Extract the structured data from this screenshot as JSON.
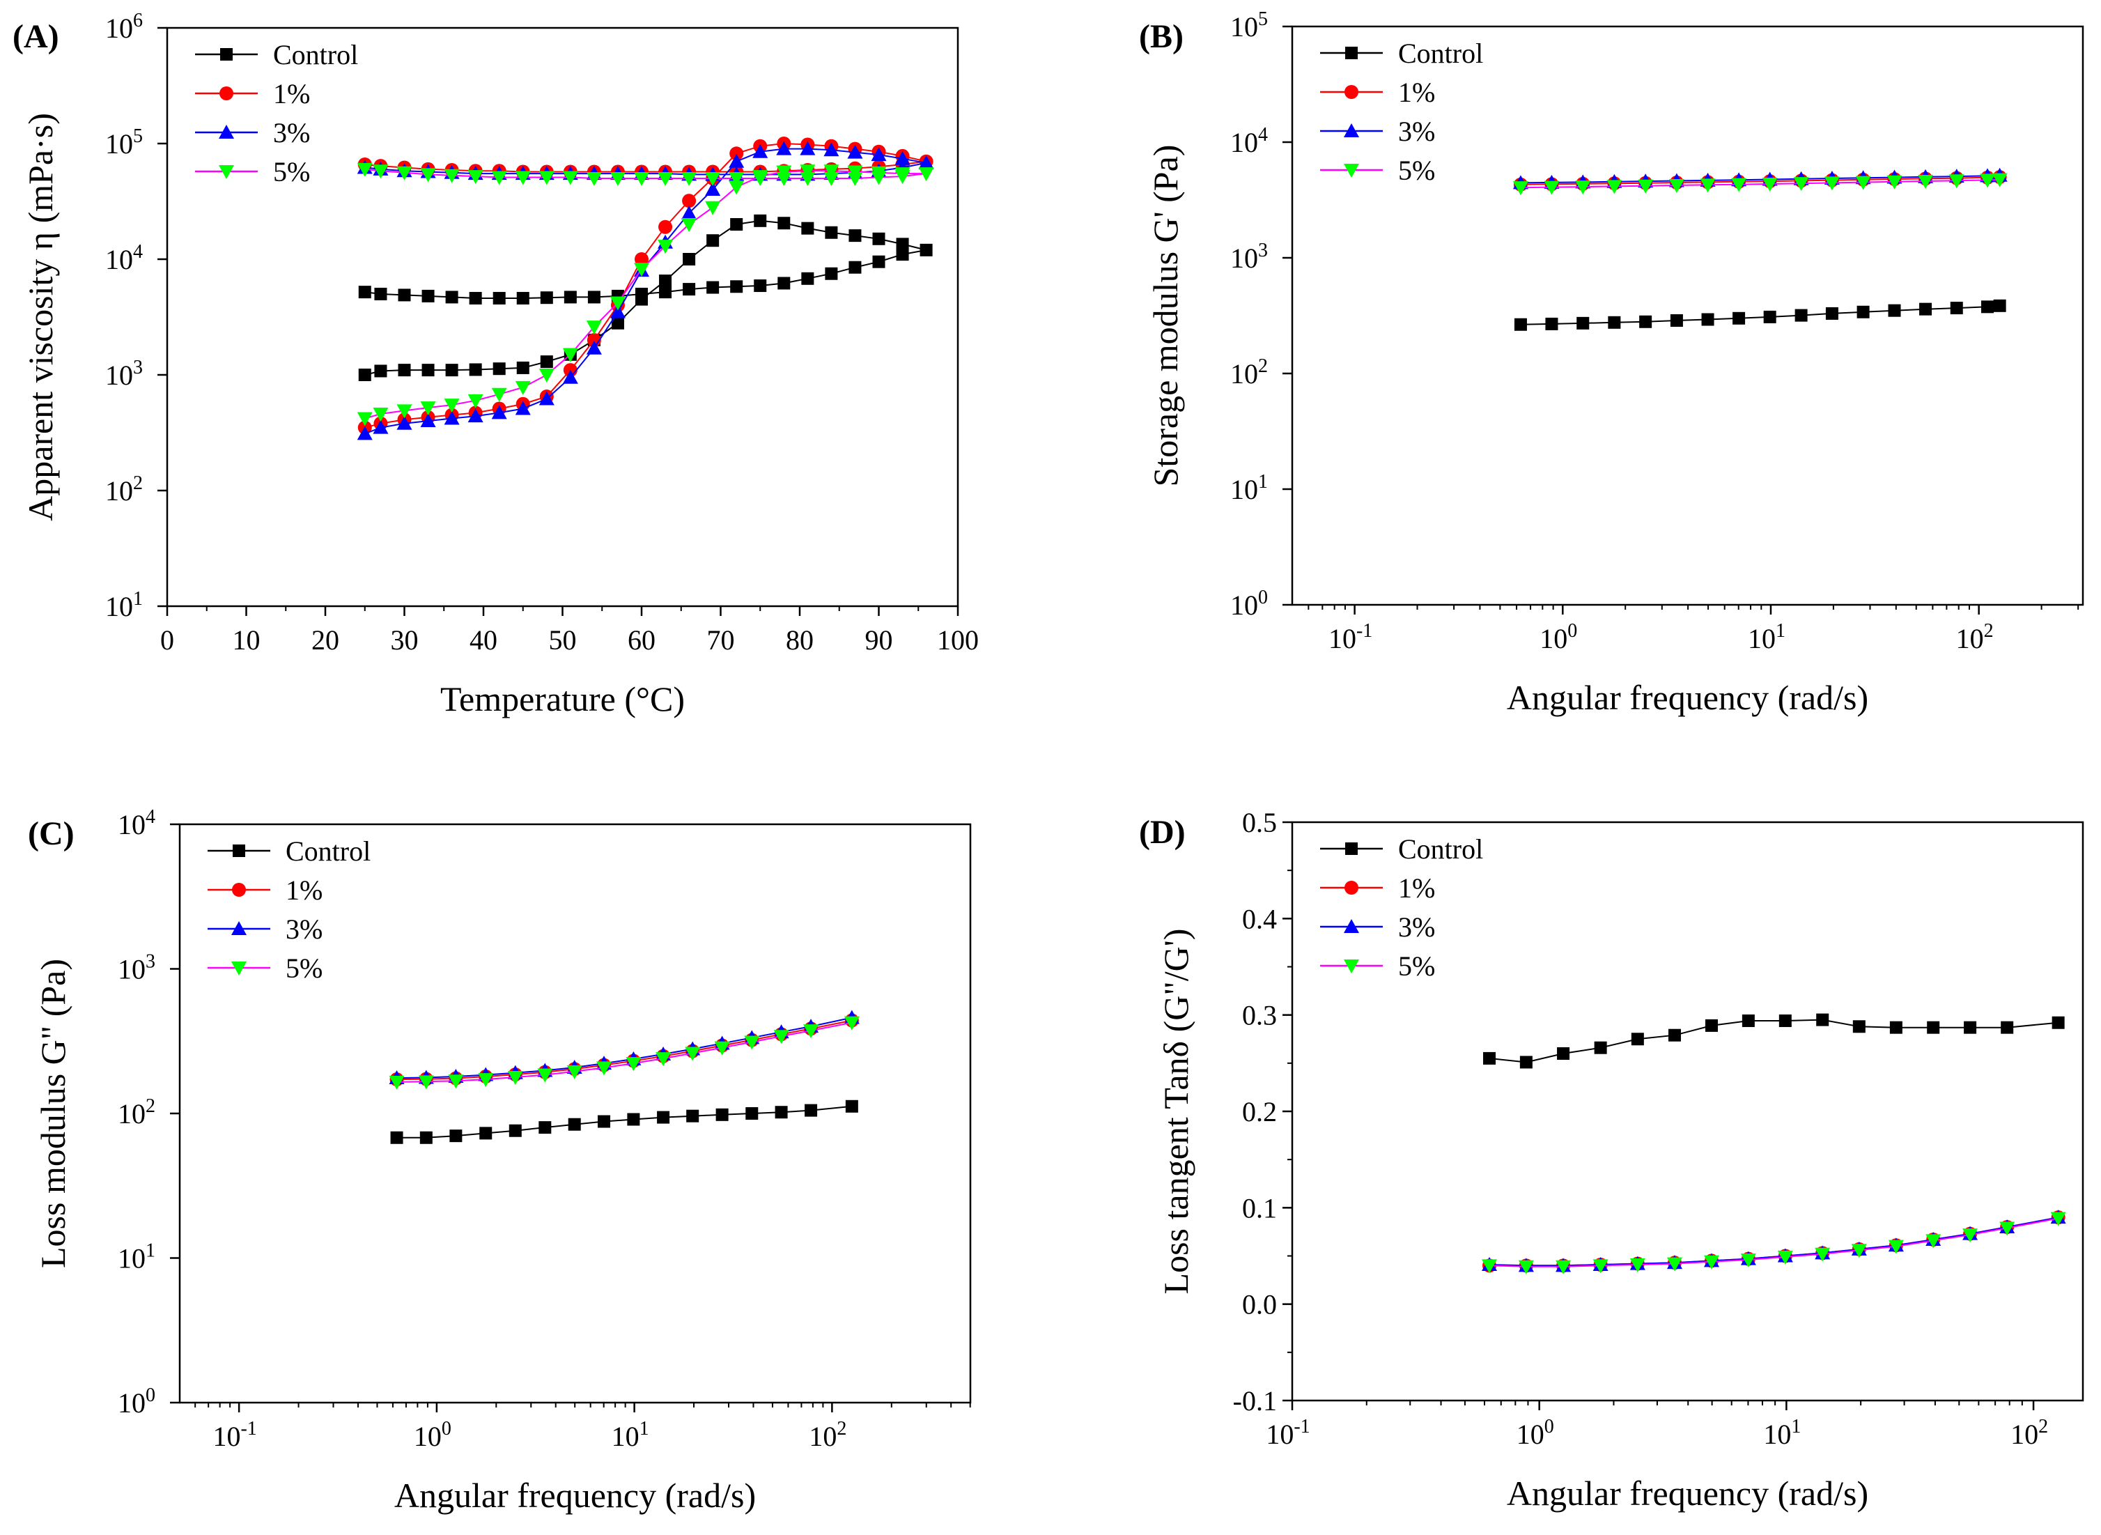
{
  "figure": {
    "background": "#ffffff"
  },
  "series_styles": [
    {
      "name": "Control",
      "color": "#000000",
      "marker": "square"
    },
    {
      "name": "1%",
      "color": "#ff0000",
      "marker": "circle"
    },
    {
      "name": "3%",
      "color": "#0000ff",
      "marker": "triangle-up"
    },
    {
      "name": "5%",
      "color": "#00ff00",
      "line_color": "#ff00ff",
      "marker": "triangle-down"
    }
  ],
  "chart_data": [
    {
      "id": "A",
      "panel_label": "(A)",
      "type": "line",
      "xscale": "linear",
      "yscale": "log",
      "xlim": [
        0,
        100
      ],
      "ylim_exp": [
        1,
        6
      ],
      "xticks": [
        0,
        10,
        20,
        30,
        40,
        50,
        60,
        70,
        80,
        90,
        100
      ],
      "yticks_exp": [
        1,
        2,
        3,
        4,
        5,
        6
      ],
      "xlabel": "Temperature (°C)",
      "ylabel": "Apparent viscosity η (mPa·s)",
      "legend": [
        "Control",
        "1%",
        "3%",
        "5%"
      ],
      "legend_position": "top-left",
      "series": [
        {
          "name": "Control",
          "x": [
            25,
            27,
            30,
            33,
            36,
            39,
            42,
            45,
            48,
            51,
            54,
            57,
            60,
            63,
            66,
            69,
            72,
            75,
            78,
            81,
            84,
            87,
            90,
            93,
            96,
            93,
            90,
            87,
            84,
            81,
            78,
            75,
            72,
            69,
            66,
            63,
            60,
            57,
            54,
            51,
            48,
            45,
            42,
            39,
            36,
            33,
            30,
            27,
            25
          ],
          "y": [
            1000,
            1080,
            1100,
            1100,
            1100,
            1110,
            1130,
            1150,
            1300,
            1500,
            2000,
            2800,
            4500,
            6500,
            10000,
            14500,
            20000,
            21500,
            20500,
            18500,
            17000,
            16000,
            15000,
            13500,
            12000,
            11000,
            9500,
            8500,
            7500,
            6800,
            6200,
            5900,
            5800,
            5700,
            5500,
            5200,
            5000,
            4800,
            4700,
            4700,
            4650,
            4600,
            4600,
            4600,
            4700,
            4800,
            4900,
            5000,
            5200
          ]
        },
        {
          "name": "1%",
          "x": [
            25,
            27,
            30,
            33,
            36,
            39,
            42,
            45,
            48,
            51,
            54,
            57,
            60,
            63,
            66,
            69,
            72,
            75,
            78,
            81,
            84,
            87,
            90,
            93,
            96,
            93,
            90,
            87,
            84,
            81,
            78,
            75,
            72,
            69,
            66,
            63,
            60,
            57,
            54,
            51,
            48,
            45,
            42,
            39,
            36,
            33,
            30,
            27,
            25
          ],
          "y": [
            350,
            380,
            410,
            430,
            450,
            470,
            510,
            560,
            650,
            1100,
            2000,
            4000,
            10000,
            19000,
            32000,
            50000,
            82000,
            95000,
            100000,
            98000,
            95000,
            90000,
            85000,
            78000,
            70000,
            66000,
            63000,
            61000,
            60000,
            59000,
            58000,
            57000,
            57000,
            57000,
            57000,
            57000,
            57000,
            57000,
            57000,
            57000,
            57000,
            57000,
            58000,
            58000,
            59000,
            60000,
            62000,
            64000,
            66000
          ]
        },
        {
          "name": "3%",
          "x": [
            25,
            27,
            30,
            33,
            36,
            39,
            42,
            45,
            48,
            51,
            54,
            57,
            60,
            63,
            66,
            69,
            72,
            75,
            78,
            81,
            84,
            87,
            90,
            93,
            96,
            93,
            90,
            87,
            84,
            81,
            78,
            75,
            72,
            69,
            66,
            63,
            60,
            57,
            54,
            51,
            48,
            45,
            42,
            39,
            36,
            33,
            30,
            27,
            25
          ],
          "y": [
            310,
            350,
            380,
            400,
            420,
            440,
            470,
            510,
            620,
            950,
            1700,
            3500,
            8000,
            14000,
            25000,
            40000,
            70000,
            85000,
            90000,
            90000,
            88000,
            84000,
            80000,
            74000,
            68000,
            62000,
            58000,
            56000,
            55000,
            54000,
            54000,
            54000,
            54000,
            54000,
            54000,
            55000,
            55000,
            55000,
            55000,
            55000,
            55000,
            55000,
            55000,
            55000,
            56000,
            57000,
            58000,
            60000,
            62000
          ]
        },
        {
          "name": "5%",
          "x": [
            25,
            27,
            30,
            33,
            36,
            39,
            42,
            45,
            48,
            51,
            54,
            57,
            60,
            63,
            66,
            69,
            72,
            75,
            78,
            81,
            84,
            87,
            90,
            93,
            96,
            93,
            90,
            87,
            84,
            81,
            78,
            75,
            72,
            69,
            66,
            63,
            60,
            57,
            54,
            51,
            48,
            45,
            42,
            39,
            36,
            33,
            30,
            27,
            25
          ],
          "y": [
            420,
            460,
            490,
            520,
            550,
            600,
            680,
            780,
            1000,
            1500,
            2600,
            4200,
            8200,
            13000,
            20000,
            28000,
            42000,
            52000,
            57000,
            58000,
            58000,
            57000,
            56000,
            55000,
            55000,
            52000,
            51000,
            50000,
            50000,
            50000,
            50000,
            50000,
            50000,
            50000,
            50000,
            50000,
            50000,
            50000,
            50000,
            51000,
            51000,
            51000,
            51000,
            52000,
            53000,
            54000,
            56000,
            58000,
            60000
          ]
        }
      ]
    },
    {
      "id": "B",
      "panel_label": "(B)",
      "type": "line",
      "xscale": "log",
      "yscale": "log",
      "xlim_exp": [
        -1.3,
        2.5
      ],
      "ylim_exp": [
        0,
        5
      ],
      "xticks_exp": [
        -1,
        0,
        1,
        2
      ],
      "yticks_exp": [
        0,
        1,
        2,
        3,
        4,
        5
      ],
      "xlabel": "Angular frequency (rad/s)",
      "ylabel": "Storage modulus G' (Pa)",
      "legend": [
        "Control",
        "1%",
        "3%",
        "5%"
      ],
      "legend_position": "top-left",
      "series": [
        {
          "name": "Control",
          "x": [
            0.628,
            0.885,
            1.25,
            1.77,
            2.5,
            3.53,
            4.98,
            7.02,
            9.9,
            14,
            19.7,
            27.8,
            39.3,
            55.4,
            78.2,
            110,
            126
          ],
          "y": [
            265,
            268,
            272,
            276,
            280,
            287,
            293,
            300,
            308,
            318,
            330,
            340,
            350,
            360,
            368,
            377,
            385
          ]
        },
        {
          "name": "1%",
          "x": [
            0.628,
            0.885,
            1.25,
            1.77,
            2.5,
            3.53,
            4.98,
            7.02,
            9.9,
            14,
            19.7,
            27.8,
            39.3,
            55.4,
            78.2,
            110,
            126
          ],
          "y": [
            4300,
            4330,
            4360,
            4400,
            4430,
            4470,
            4510,
            4550,
            4590,
            4640,
            4690,
            4740,
            4790,
            4840,
            4890,
            4940,
            4990
          ]
        },
        {
          "name": "3%",
          "x": [
            0.628,
            0.885,
            1.25,
            1.77,
            2.5,
            3.53,
            4.98,
            7.02,
            9.9,
            14,
            19.7,
            27.8,
            39.3,
            55.4,
            78.2,
            110,
            126
          ],
          "y": [
            4450,
            4480,
            4510,
            4550,
            4590,
            4630,
            4670,
            4710,
            4760,
            4810,
            4860,
            4910,
            4960,
            5010,
            5060,
            5110,
            5160
          ]
        },
        {
          "name": "5%",
          "x": [
            0.628,
            0.885,
            1.25,
            1.77,
            2.5,
            3.53,
            4.98,
            7.02,
            9.9,
            14,
            19.7,
            27.8,
            39.3,
            55.4,
            78.2,
            110,
            126
          ],
          "y": [
            4050,
            4080,
            4110,
            4150,
            4190,
            4230,
            4270,
            4310,
            4350,
            4400,
            4450,
            4500,
            4550,
            4600,
            4650,
            4700,
            4750
          ]
        }
      ]
    },
    {
      "id": "C",
      "panel_label": "(C)",
      "type": "line",
      "xscale": "log",
      "yscale": "log",
      "xlim_exp": [
        -1.3,
        2.7
      ],
      "ylim_exp": [
        0,
        4
      ],
      "xticks_exp": [
        -1,
        0,
        1,
        2
      ],
      "yticks_exp": [
        0,
        1,
        2,
        3,
        4
      ],
      "xlabel": "Angular frequency (rad/s)",
      "ylabel": "Loss modulus G\" (Pa)",
      "legend": [
        "Control",
        "1%",
        "3%",
        "5%"
      ],
      "legend_position": "top-left",
      "series": [
        {
          "name": "Control",
          "x": [
            0.628,
            0.885,
            1.25,
            1.77,
            2.5,
            3.53,
            4.98,
            7.02,
            9.9,
            14,
            19.7,
            27.8,
            39.3,
            55.4,
            78.2,
            126
          ],
          "y": [
            68,
            68,
            70,
            73,
            76,
            80,
            84,
            88,
            91,
            94,
            96,
            98,
            100,
            102,
            105,
            112
          ]
        },
        {
          "name": "1%",
          "x": [
            0.628,
            0.885,
            1.25,
            1.77,
            2.5,
            3.53,
            4.98,
            7.02,
            9.9,
            14,
            19.7,
            27.8,
            39.3,
            55.4,
            78.2,
            126
          ],
          "y": [
            172,
            173,
            175,
            180,
            186,
            193,
            203,
            216,
            231,
            249,
            270,
            295,
            322,
            353,
            386,
            440
          ]
        },
        {
          "name": "3%",
          "x": [
            0.628,
            0.885,
            1.25,
            1.77,
            2.5,
            3.53,
            4.98,
            7.02,
            9.9,
            14,
            19.7,
            27.8,
            39.3,
            55.4,
            78.2,
            126
          ],
          "y": [
            176,
            177,
            180,
            185,
            191,
            198,
            208,
            222,
            238,
            257,
            279,
            305,
            334,
            366,
            400,
            460
          ]
        },
        {
          "name": "5%",
          "x": [
            0.628,
            0.885,
            1.25,
            1.77,
            2.5,
            3.53,
            4.98,
            7.02,
            9.9,
            14,
            19.7,
            27.8,
            39.3,
            55.4,
            78.2,
            126
          ],
          "y": [
            165,
            166,
            168,
            172,
            178,
            185,
            195,
            207,
            222,
            240,
            261,
            285,
            312,
            342,
            374,
            425
          ]
        }
      ]
    },
    {
      "id": "D",
      "panel_label": "(D)",
      "type": "line",
      "xscale": "log",
      "yscale": "linear",
      "xlim_exp": [
        -1,
        2.2
      ],
      "ylim": [
        -0.1,
        0.5
      ],
      "xticks_exp": [
        -1,
        0,
        1,
        2
      ],
      "yticks": [
        -0.1,
        0.0,
        0.1,
        0.2,
        0.3,
        0.4,
        0.5
      ],
      "ytick_labels": [
        "-0.1",
        "0.0",
        "0.1",
        "0.2",
        "0.3",
        "0.4",
        "0.5"
      ],
      "xlabel": "Angular frequency (rad/s)",
      "ylabel": "Loss tangent Tanδ (G\"/G')",
      "legend": [
        "Control",
        "1%",
        "3%",
        "5%"
      ],
      "legend_position": "top-left",
      "series": [
        {
          "name": "Control",
          "x": [
            0.628,
            0.885,
            1.25,
            1.77,
            2.5,
            3.53,
            4.98,
            7.02,
            9.9,
            14,
            19.7,
            27.8,
            39.3,
            55.4,
            78.2,
            126
          ],
          "y": [
            0.255,
            0.251,
            0.26,
            0.266,
            0.275,
            0.279,
            0.289,
            0.294,
            0.294,
            0.295,
            0.288,
            0.287,
            0.287,
            0.287,
            0.287,
            0.292
          ]
        },
        {
          "name": "1%",
          "x": [
            0.628,
            0.885,
            1.25,
            1.77,
            2.5,
            3.53,
            4.98,
            7.02,
            9.9,
            14,
            19.7,
            27.8,
            39.3,
            55.4,
            78.2,
            126
          ],
          "y": [
            0.04,
            0.04,
            0.04,
            0.041,
            0.042,
            0.043,
            0.045,
            0.047,
            0.05,
            0.053,
            0.057,
            0.061,
            0.067,
            0.073,
            0.08,
            0.09
          ]
        },
        {
          "name": "3%",
          "x": [
            0.628,
            0.885,
            1.25,
            1.77,
            2.5,
            3.53,
            4.98,
            7.02,
            9.9,
            14,
            19.7,
            27.8,
            39.3,
            55.4,
            78.2,
            126
          ],
          "y": [
            0.041,
            0.04,
            0.04,
            0.041,
            0.042,
            0.043,
            0.045,
            0.047,
            0.05,
            0.053,
            0.057,
            0.061,
            0.067,
            0.073,
            0.08,
            0.09
          ]
        },
        {
          "name": "5%",
          "x": [
            0.628,
            0.885,
            1.25,
            1.77,
            2.5,
            3.53,
            4.98,
            7.02,
            9.9,
            14,
            19.7,
            27.8,
            39.3,
            55.4,
            78.2,
            126
          ],
          "y": [
            0.04,
            0.039,
            0.039,
            0.04,
            0.041,
            0.042,
            0.044,
            0.046,
            0.049,
            0.052,
            0.056,
            0.06,
            0.066,
            0.072,
            0.079,
            0.089
          ]
        }
      ]
    }
  ]
}
